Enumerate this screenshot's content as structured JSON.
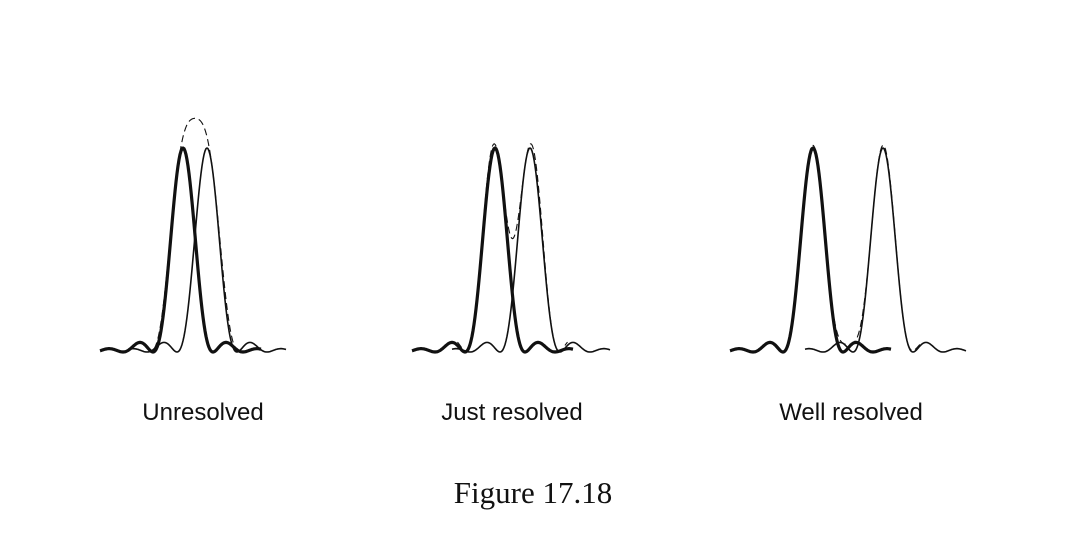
{
  "panels": [
    {
      "label": "Unresolved"
    },
    {
      "label": "Just resolved"
    },
    {
      "label": "Well resolved"
    }
  ],
  "caption": "Figure 17.18"
}
